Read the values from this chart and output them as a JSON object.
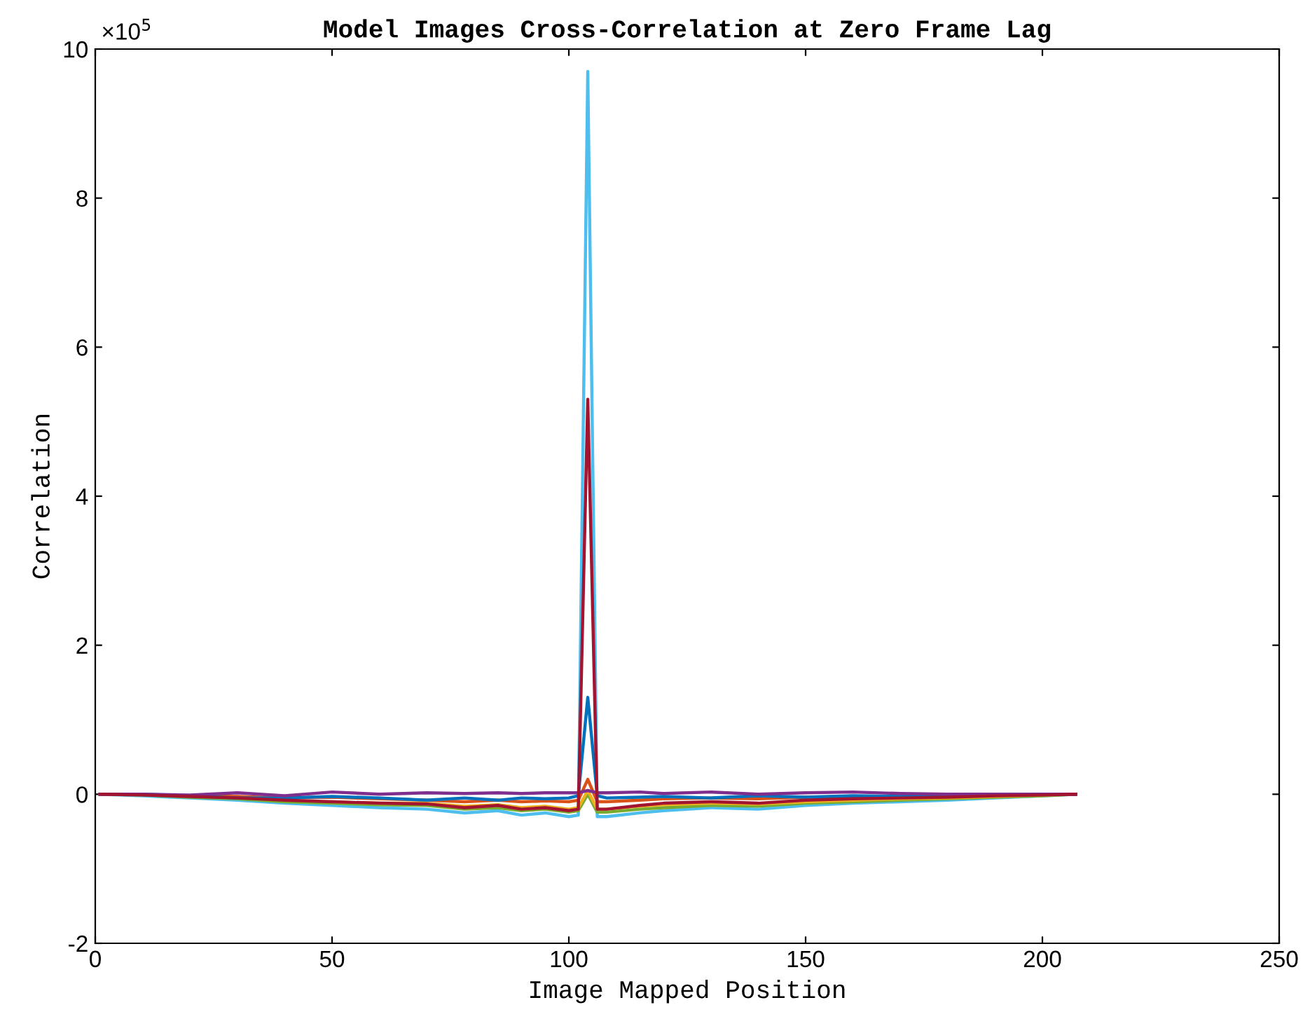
{
  "chart_data": {
    "type": "line",
    "title": "Model Images Cross-Correlation at Zero Frame Lag",
    "xlabel": "Image Mapped Position",
    "ylabel": "Correlation",
    "annotations": [
      "×10$^{5}$"
    ],
    "x": [
      1,
      10,
      20,
      30,
      40,
      50,
      60,
      70,
      78,
      85,
      90,
      95,
      100,
      102,
      104,
      106,
      108,
      115,
      120,
      130,
      140,
      150,
      160,
      170,
      180,
      190,
      200,
      207
    ],
    "series": [
      {
        "color": "#4dbeee",
        "values": [
          0,
          -0.02,
          -0.05,
          -0.08,
          -0.12,
          -0.15,
          -0.18,
          -0.2,
          -0.25,
          -0.22,
          -0.28,
          -0.25,
          -0.3,
          -0.28,
          9.7,
          -0.3,
          -0.3,
          -0.25,
          -0.22,
          -0.18,
          -0.2,
          -0.15,
          -0.12,
          -0.1,
          -0.08,
          -0.05,
          -0.02,
          0
        ]
      },
      {
        "color": "#77ac30",
        "values": [
          0,
          -0.01,
          -0.04,
          -0.06,
          -0.1,
          -0.12,
          -0.14,
          -0.15,
          -0.2,
          -0.18,
          -0.22,
          -0.2,
          -0.24,
          -0.22,
          0,
          -0.24,
          -0.24,
          -0.2,
          -0.18,
          -0.15,
          -0.16,
          -0.12,
          -0.1,
          -0.08,
          -0.06,
          -0.04,
          -0.02,
          0
        ]
      },
      {
        "color": "#edb120",
        "values": [
          null,
          null,
          null,
          null,
          null,
          -0.1,
          -0.12,
          -0.12,
          -0.16,
          -0.14,
          -0.18,
          -0.16,
          -0.2,
          -0.18,
          0.05,
          -0.2,
          -0.2,
          -0.16,
          -0.14,
          -0.12,
          -0.13,
          -0.1,
          -0.08,
          -0.06,
          -0.05,
          -0.03,
          -0.01,
          0
        ]
      },
      {
        "color": "#d95319",
        "values": [
          null,
          null,
          -0.02,
          -0.03,
          -0.05,
          -0.04,
          -0.06,
          -0.08,
          -0.1,
          -0.08,
          -0.1,
          -0.09,
          -0.1,
          -0.08,
          0.2,
          -0.1,
          -0.1,
          -0.08,
          -0.06,
          -0.05,
          -0.06,
          -0.04,
          -0.03,
          -0.03,
          -0.02,
          -0.01,
          0,
          0
        ]
      },
      {
        "color": "#0072bd",
        "values": [
          0,
          0,
          -0.02,
          -0.05,
          -0.05,
          -0.03,
          -0.05,
          -0.08,
          -0.05,
          -0.08,
          -0.05,
          -0.06,
          -0.05,
          -0.02,
          1.3,
          -0.02,
          -0.05,
          -0.04,
          -0.03,
          -0.05,
          -0.02,
          -0.04,
          -0.02,
          -0.03,
          -0.01,
          -0.01,
          0,
          0
        ]
      },
      {
        "color": "#7e2f8e",
        "values": [
          0,
          0,
          -0.01,
          0.02,
          -0.02,
          0.03,
          0,
          0.02,
          0.01,
          0.02,
          0.01,
          0.02,
          0.02,
          0.02,
          0.05,
          0.02,
          0.02,
          0.03,
          0.01,
          0.03,
          0,
          0.02,
          0.03,
          0.01,
          0,
          0,
          0,
          0
        ]
      },
      {
        "color": "#a2142f",
        "values": [
          0,
          -0.01,
          -0.03,
          -0.05,
          -0.08,
          -0.1,
          -0.12,
          -0.13,
          -0.18,
          -0.15,
          -0.2,
          -0.18,
          -0.22,
          -0.2,
          5.3,
          -0.2,
          -0.2,
          -0.15,
          -0.12,
          -0.1,
          -0.12,
          -0.08,
          -0.06,
          -0.05,
          -0.04,
          -0.02,
          -0.01,
          0
        ]
      }
    ],
    "xlim": [
      0,
      250
    ],
    "xticks": [
      0,
      50,
      100,
      150,
      200,
      250
    ],
    "ylim": [
      -2,
      10
    ],
    "yticks": [
      -2,
      0,
      2,
      4,
      6,
      8,
      10
    ],
    "grid": false,
    "legend": false
  }
}
